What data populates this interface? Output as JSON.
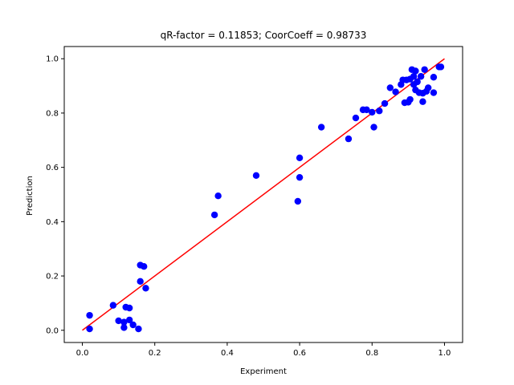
{
  "chart_data": {
    "type": "scatter",
    "title": "qR-factor = 0.11853; CoorCoeff = 0.98733",
    "xlabel": "Experiment",
    "ylabel": "Prediction",
    "xlim": [
      -0.05,
      1.05
    ],
    "ylim": [
      -0.045,
      1.045
    ],
    "xticks": [
      0.0,
      0.2,
      0.4,
      0.6,
      0.8,
      1.0
    ],
    "yticks": [
      0.0,
      0.2,
      0.4,
      0.6,
      0.8,
      1.0
    ],
    "xtick_labels": [
      "0.0",
      "0.2",
      "0.4",
      "0.6",
      "0.8",
      "1.0"
    ],
    "ytick_labels": [
      "0.0",
      "0.2",
      "0.4",
      "0.6",
      "0.8",
      "1.0"
    ],
    "grid": false,
    "point_color": "#0000ff",
    "line_color": "#ff0000",
    "reference_line": {
      "x": [
        0.0,
        1.0
      ],
      "y": [
        0.0,
        1.0
      ]
    },
    "points": [
      [
        0.02,
        0.055
      ],
      [
        0.02,
        0.005
      ],
      [
        0.085,
        0.092
      ],
      [
        0.1,
        0.035
      ],
      [
        0.115,
        0.03
      ],
      [
        0.115,
        0.01
      ],
      [
        0.12,
        0.085
      ],
      [
        0.13,
        0.082
      ],
      [
        0.13,
        0.038
      ],
      [
        0.14,
        0.02
      ],
      [
        0.155,
        0.005
      ],
      [
        0.16,
        0.24
      ],
      [
        0.17,
        0.235
      ],
      [
        0.16,
        0.18
      ],
      [
        0.175,
        0.155
      ],
      [
        0.365,
        0.425
      ],
      [
        0.375,
        0.495
      ],
      [
        0.48,
        0.57
      ],
      [
        0.595,
        0.475
      ],
      [
        0.6,
        0.635
      ],
      [
        0.6,
        0.563
      ],
      [
        0.66,
        0.748
      ],
      [
        0.735,
        0.705
      ],
      [
        0.755,
        0.782
      ],
      [
        0.775,
        0.812
      ],
      [
        0.785,
        0.812
      ],
      [
        0.8,
        0.803
      ],
      [
        0.805,
        0.748
      ],
      [
        0.82,
        0.808
      ],
      [
        0.835,
        0.835
      ],
      [
        0.85,
        0.893
      ],
      [
        0.865,
        0.878
      ],
      [
        0.88,
        0.905
      ],
      [
        0.885,
        0.922
      ],
      [
        0.89,
        0.838
      ],
      [
        0.895,
        0.922
      ],
      [
        0.9,
        0.84
      ],
      [
        0.905,
        0.85
      ],
      [
        0.905,
        0.925
      ],
      [
        0.91,
        0.96
      ],
      [
        0.915,
        0.935
      ],
      [
        0.915,
        0.905
      ],
      [
        0.92,
        0.885
      ],
      [
        0.92,
        0.955
      ],
      [
        0.925,
        0.915
      ],
      [
        0.93,
        0.875
      ],
      [
        0.935,
        0.935
      ],
      [
        0.94,
        0.842
      ],
      [
        0.94,
        0.873
      ],
      [
        0.945,
        0.96
      ],
      [
        0.95,
        0.88
      ],
      [
        0.955,
        0.893
      ],
      [
        0.97,
        0.932
      ],
      [
        0.97,
        0.875
      ],
      [
        0.985,
        0.97
      ],
      [
        0.99,
        0.97
      ]
    ]
  }
}
